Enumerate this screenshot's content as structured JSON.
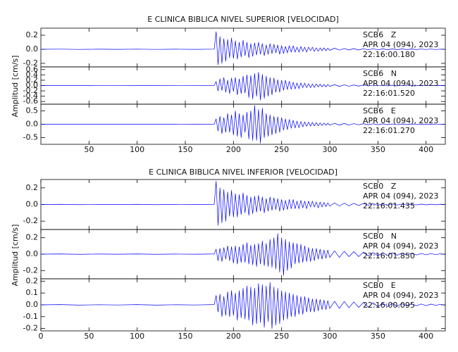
{
  "chart_data": [
    {
      "type": "line",
      "title": "E CLINICA BIBLICA NIVEL SUPERIOR [VELOCIDAD]",
      "ylabel": "Amplitud [cm/s]",
      "xlim": [
        0,
        420
      ],
      "xticks": [
        50,
        100,
        150,
        200,
        250,
        300,
        350,
        400
      ],
      "x": [
        0,
        20,
        40,
        60,
        80,
        100,
        120,
        140,
        160,
        180,
        182,
        184,
        186,
        188,
        190,
        192,
        194,
        196,
        198,
        200,
        202,
        204,
        206,
        208,
        210,
        212,
        214,
        216,
        218,
        220,
        222,
        224,
        226,
        228,
        230,
        232,
        234,
        236,
        238,
        240,
        242,
        244,
        246,
        248,
        250,
        252,
        254,
        256,
        258,
        260,
        262,
        264,
        266,
        268,
        270,
        272,
        274,
        276,
        278,
        280,
        282,
        284,
        286,
        288,
        290,
        292,
        294,
        296,
        298,
        300,
        305,
        310,
        315,
        320,
        325,
        330,
        335,
        340,
        345,
        350,
        355,
        360,
        365,
        370,
        375,
        380,
        385,
        390,
        395,
        400,
        405,
        410,
        415,
        420
      ],
      "series": [
        {
          "name": "SCB6   Z",
          "date": "APR 04 (094), 2023",
          "time": "22:16:00.180",
          "color": "#0000ff",
          "ylim": [
            -0.25,
            0.3
          ],
          "yticks": [
            {
              "value": 0.2,
              "label": "0.2"
            },
            {
              "value": 0,
              "label": "0.0"
            },
            {
              "value": -0.2,
              "label": "-0.2"
            }
          ],
          "values": [
            0,
            0.002,
            -0.002,
            0.001,
            -0.001,
            0.002,
            -0.002,
            0.001,
            -0.001,
            0.002,
            0.25,
            -0.22,
            0.18,
            -0.2,
            0.15,
            -0.17,
            0.14,
            -0.12,
            0.16,
            -0.13,
            0.12,
            -0.14,
            0.1,
            -0.11,
            0.13,
            -0.09,
            0.1,
            -0.12,
            0.08,
            -0.1,
            0.09,
            -0.08,
            0.1,
            -0.07,
            0.08,
            -0.09,
            0.06,
            -0.07,
            0.08,
            -0.06,
            0.07,
            -0.05,
            0.06,
            -0.07,
            0.05,
            -0.06,
            0.04,
            -0.05,
            0.05,
            -0.04,
            0.05,
            -0.04,
            0.03,
            -0.04,
            0.04,
            -0.03,
            0.03,
            -0.04,
            0.03,
            -0.02,
            0.03,
            -0.03,
            0.02,
            -0.03,
            0.02,
            -0.02,
            0.02,
            -0.02,
            0.015,
            -0.015,
            0.015,
            -0.012,
            0.012,
            -0.01,
            0.01,
            -0.01,
            0.008,
            -0.008,
            0.007,
            -0.007,
            0.006,
            -0.006,
            0.005,
            -0.005,
            0.005,
            -0.004,
            0.004,
            -0.004,
            0.003,
            -0.003,
            0.003,
            -0.003,
            0.002,
            -0.002
          ]
        },
        {
          "name": "SCB6   N",
          "date": "APR 04 (094), 2023",
          "time": "22:16:01.520",
          "color": "#0000ff",
          "ylim": [
            -0.7,
            0.7
          ],
          "yticks": [
            {
              "value": 0.6,
              "label": "0.6"
            },
            {
              "value": 0.4,
              "label": "0.4"
            },
            {
              "value": 0.2,
              "label": "0.2"
            },
            {
              "value": 0,
              "label": "0.0"
            },
            {
              "value": -0.2,
              "label": "-0.2"
            },
            {
              "value": -0.4,
              "label": "-0.4"
            },
            {
              "value": -0.6,
              "label": "-0.6"
            }
          ],
          "values": [
            0,
            0.003,
            -0.003,
            0.002,
            -0.002,
            0.003,
            -0.003,
            0.002,
            -0.002,
            0.003,
            0.15,
            -0.2,
            0.25,
            -0.18,
            0.3,
            -0.25,
            0.2,
            -0.3,
            0.28,
            -0.22,
            0.3,
            -0.35,
            0.25,
            -0.3,
            0.35,
            -0.28,
            0.4,
            -0.45,
            0.38,
            -0.5,
            0.45,
            -0.4,
            0.5,
            -0.55,
            0.42,
            -0.48,
            0.35,
            -0.4,
            0.3,
            -0.35,
            0.28,
            -0.25,
            0.22,
            -0.25,
            0.2,
            -0.18,
            0.2,
            -0.15,
            0.16,
            -0.14,
            0.12,
            -0.13,
            0.1,
            -0.12,
            0.1,
            -0.08,
            0.09,
            -0.08,
            0.07,
            -0.08,
            0.06,
            -0.07,
            0.06,
            -0.05,
            0.05,
            -0.05,
            0.04,
            -0.05,
            0.04,
            -0.03,
            0.03,
            -0.03,
            0.025,
            -0.025,
            0.02,
            -0.02,
            0.018,
            -0.015,
            0.015,
            -0.012,
            0.012,
            -0.01,
            0.01,
            -0.01,
            0.008,
            -0.008,
            0.007,
            -0.006,
            0.006,
            -0.005,
            0.005,
            -0.004,
            0.004,
            -0.003
          ]
        },
        {
          "name": "SCB6   E",
          "date": "APR 04 (094), 2023",
          "time": "22:16:01.270",
          "color": "#0000ff",
          "ylim": [
            -0.75,
            0.75
          ],
          "yticks": [
            {
              "value": 0.5,
              "label": "0.5"
            },
            {
              "value": 0,
              "label": "0.0"
            },
            {
              "value": -0.5,
              "label": "-0.5"
            }
          ],
          "values": [
            0,
            0.004,
            -0.004,
            0.003,
            -0.003,
            0.004,
            -0.004,
            0.003,
            -0.003,
            0.004,
            0.2,
            -0.25,
            0.3,
            -0.35,
            0.25,
            -0.3,
            0.4,
            -0.3,
            0.35,
            -0.4,
            0.5,
            -0.45,
            0.4,
            -0.5,
            0.35,
            -0.3,
            0.45,
            -0.55,
            0.5,
            -0.6,
            0.7,
            -0.6,
            0.55,
            -0.7,
            0.6,
            -0.5,
            0.4,
            -0.45,
            0.35,
            -0.4,
            0.3,
            -0.35,
            0.28,
            -0.3,
            0.25,
            -0.22,
            0.2,
            -0.2,
            0.18,
            -0.15,
            0.15,
            -0.14,
            0.12,
            -0.13,
            0.1,
            -0.1,
            0.09,
            -0.08,
            0.08,
            -0.07,
            0.07,
            -0.06,
            0.06,
            -0.06,
            0.05,
            -0.05,
            0.045,
            -0.04,
            0.04,
            -0.035,
            0.035,
            -0.03,
            0.03,
            -0.028,
            0.025,
            -0.022,
            0.02,
            -0.02,
            0.018,
            -0.016,
            0.015,
            -0.014,
            0.012,
            -0.012,
            0.01,
            -0.01,
            0.009,
            -0.008,
            0.007,
            -0.007,
            0.006,
            -0.005,
            0.005,
            -0.004
          ]
        }
      ]
    },
    {
      "type": "line",
      "title": "E CLINICA BIBLICA NIVEL INFERIOR [VELOCIDAD]",
      "ylabel": "Amplitud [cm/s]",
      "xlim": [
        0,
        420
      ],
      "xticks": [
        0,
        50,
        100,
        150,
        200,
        250,
        300,
        350,
        400
      ],
      "x": [
        0,
        20,
        40,
        60,
        80,
        100,
        120,
        140,
        160,
        180,
        182,
        184,
        186,
        188,
        190,
        192,
        194,
        196,
        198,
        200,
        202,
        204,
        206,
        208,
        210,
        212,
        214,
        216,
        218,
        220,
        222,
        224,
        226,
        228,
        230,
        232,
        234,
        236,
        238,
        240,
        242,
        244,
        246,
        248,
        250,
        252,
        254,
        256,
        258,
        260,
        262,
        264,
        266,
        268,
        270,
        272,
        274,
        276,
        278,
        280,
        282,
        284,
        286,
        288,
        290,
        292,
        294,
        296,
        298,
        300,
        305,
        310,
        315,
        320,
        325,
        330,
        335,
        340,
        345,
        350,
        355,
        360,
        365,
        370,
        375,
        380,
        385,
        390,
        395,
        400,
        405,
        410,
        415,
        420
      ],
      "series": [
        {
          "name": "SCB0   Z",
          "date": "APR 04 (094), 2023",
          "time": "22:16:01.435",
          "color": "#0000ff",
          "ylim": [
            -0.3,
            0.3
          ],
          "yticks": [
            {
              "value": 0.2,
              "label": "0.2"
            },
            {
              "value": 0,
              "label": "0.0"
            },
            {
              "value": -0.2,
              "label": "-0.2"
            }
          ],
          "values": [
            0,
            0.002,
            -0.002,
            0.001,
            -0.001,
            0.002,
            -0.002,
            0.001,
            -0.001,
            0.002,
            0.28,
            -0.25,
            0.2,
            -0.22,
            0.18,
            -0.2,
            0.15,
            -0.14,
            0.17,
            -0.15,
            0.13,
            -0.15,
            0.12,
            -0.12,
            0.14,
            -0.1,
            0.11,
            -0.13,
            0.09,
            -0.11,
            0.1,
            -0.09,
            0.11,
            -0.08,
            0.09,
            -0.1,
            0.07,
            -0.08,
            0.09,
            -0.07,
            0.08,
            -0.06,
            0.07,
            -0.08,
            0.06,
            -0.07,
            0.05,
            -0.06,
            0.06,
            -0.05,
            0.06,
            -0.05,
            0.04,
            -0.05,
            0.05,
            -0.04,
            0.04,
            -0.05,
            0.04,
            -0.03,
            0.04,
            -0.03,
            0.03,
            -0.04,
            0.03,
            -0.03,
            0.025,
            -0.025,
            0.02,
            -0.02,
            0.02,
            -0.018,
            0.016,
            -0.015,
            0.014,
            -0.012,
            0.012,
            -0.01,
            0.01,
            -0.009,
            0.008,
            -0.008,
            0.007,
            -0.006,
            0.006,
            -0.005,
            0.005,
            -0.005,
            0.004,
            -0.004,
            0.003,
            -0.003,
            0.003,
            -0.002
          ]
        },
        {
          "name": "SCB0   N",
          "date": "APR 04 (094), 2023",
          "time": "22:16:01.850",
          "color": "#0000ff",
          "ylim": [
            -0.3,
            0.3
          ],
          "yticks": [
            {
              "value": 0.2,
              "label": "0.2"
            },
            {
              "value": 0,
              "label": "0.0"
            },
            {
              "value": -0.2,
              "label": "-0.2"
            }
          ],
          "values": [
            0,
            0.002,
            -0.002,
            0.001,
            -0.001,
            0.002,
            -0.002,
            0.001,
            -0.001,
            0.002,
            0.06,
            -0.08,
            0.07,
            -0.09,
            0.08,
            -0.06,
            0.1,
            -0.08,
            0.09,
            -0.11,
            0.1,
            -0.12,
            0.09,
            -0.1,
            0.12,
            -0.1,
            0.14,
            -0.12,
            0.11,
            -0.13,
            0.12,
            -0.15,
            0.13,
            -0.12,
            0.16,
            -0.14,
            0.13,
            -0.15,
            0.18,
            -0.16,
            0.2,
            -0.18,
            0.25,
            -0.22,
            0.2,
            -0.26,
            0.18,
            -0.2,
            0.15,
            -0.17,
            0.14,
            -0.12,
            0.13,
            -0.11,
            0.12,
            -0.1,
            0.1,
            -0.09,
            0.08,
            -0.09,
            0.07,
            -0.08,
            0.07,
            -0.06,
            0.06,
            -0.06,
            0.05,
            -0.05,
            0.05,
            -0.04,
            0.04,
            -0.04,
            0.035,
            -0.03,
            0.03,
            -0.03,
            0.025,
            -0.022,
            0.02,
            -0.02,
            0.018,
            -0.015,
            0.015,
            -0.013,
            0.012,
            -0.01,
            0.01,
            -0.01,
            0.008,
            -0.008,
            0.007,
            -0.006,
            0.005,
            -0.005
          ]
        },
        {
          "name": "SCB0   E",
          "date": "APR 04 (094), 2023",
          "time": "22:16:00.095",
          "color": "#0000ff",
          "ylim": [
            -0.22,
            0.22
          ],
          "yticks": [
            {
              "value": 0.2,
              "label": "0.2"
            },
            {
              "value": 0.1,
              "label": "0.1"
            },
            {
              "value": 0,
              "label": "0.0"
            },
            {
              "value": -0.1,
              "label": "-0.1"
            },
            {
              "value": -0.2,
              "label": "-0.2"
            }
          ],
          "values": [
            0,
            0.002,
            -0.002,
            0.001,
            -0.001,
            0.002,
            -0.002,
            0.001,
            -0.001,
            0.002,
            0.08,
            -0.06,
            0.09,
            -0.1,
            0.07,
            -0.09,
            0.11,
            -0.1,
            0.12,
            -0.09,
            0.1,
            -0.13,
            0.12,
            -0.11,
            0.14,
            -0.12,
            0.16,
            -0.13,
            0.15,
            -0.17,
            0.14,
            -0.16,
            0.18,
            -0.15,
            0.17,
            -0.19,
            0.16,
            -0.14,
            0.19,
            -0.2,
            0.15,
            -0.17,
            0.14,
            -0.16,
            0.12,
            -0.13,
            0.11,
            -0.12,
            0.1,
            -0.1,
            0.09,
            -0.1,
            0.08,
            -0.08,
            0.07,
            -0.08,
            0.07,
            -0.06,
            0.06,
            -0.06,
            0.05,
            -0.06,
            0.05,
            -0.05,
            0.045,
            -0.04,
            0.04,
            -0.04,
            0.035,
            -0.03,
            0.03,
            -0.03,
            0.028,
            -0.025,
            0.025,
            -0.022,
            0.02,
            -0.02,
            0.018,
            -0.016,
            0.015,
            -0.014,
            0.012,
            -0.012,
            0.01,
            -0.01,
            0.009,
            -0.008,
            0.007,
            -0.007,
            0.006,
            -0.005,
            0.005,
            -0.004
          ]
        }
      ]
    }
  ]
}
